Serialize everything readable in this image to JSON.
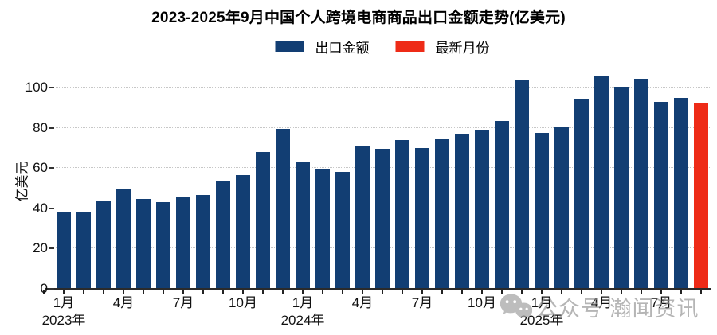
{
  "chart_data": {
    "type": "bar",
    "title": "2023-2025年9月中国个人跨境电商商品出口金额走势(亿美元)",
    "ylabel": "亿美元",
    "ylim": [
      0,
      107
    ],
    "yticks": [
      0,
      20,
      40,
      60,
      80,
      100
    ],
    "grid": "horizontal dotted",
    "legend_position": "top-center",
    "legend": [
      {
        "label": "出口金额",
        "color": "#123e73"
      },
      {
        "label": "最新月份",
        "color": "#ee2b17"
      }
    ],
    "highlight_last": true,
    "categories": [
      "2023-01",
      "2023-02",
      "2023-03",
      "2023-04",
      "2023-05",
      "2023-06",
      "2023-07",
      "2023-08",
      "2023-09",
      "2023-10",
      "2023-11",
      "2023-12",
      "2024-01",
      "2024-02",
      "2024-03",
      "2024-04",
      "2024-05",
      "2024-06",
      "2024-07",
      "2024-08",
      "2024-09",
      "2024-10",
      "2024-11",
      "2024-12",
      "2025-01",
      "2025-02",
      "2025-03",
      "2025-04",
      "2025-05",
      "2025-06",
      "2025-07",
      "2025-08",
      "2025-09"
    ],
    "values": [
      38,
      38.5,
      44,
      50,
      44.5,
      43,
      45.5,
      46.5,
      53.5,
      56.5,
      68,
      79.5,
      63,
      59.5,
      58,
      71,
      69.5,
      74,
      70,
      74.5,
      77,
      79,
      83.5,
      103.5,
      77.5,
      80.5,
      94.5,
      105.5,
      100.5,
      104.5,
      93,
      95,
      92
    ],
    "x_tick_labels": [
      {
        "index": 0,
        "label": "1月"
      },
      {
        "index": 3,
        "label": "4月"
      },
      {
        "index": 6,
        "label": "7月"
      },
      {
        "index": 9,
        "label": "10月"
      },
      {
        "index": 12,
        "label": "1月"
      },
      {
        "index": 15,
        "label": "4月"
      },
      {
        "index": 18,
        "label": "7月"
      },
      {
        "index": 21,
        "label": "10月"
      },
      {
        "index": 24,
        "label": "1月"
      },
      {
        "index": 27,
        "label": "4月"
      },
      {
        "index": 30,
        "label": "7月"
      }
    ],
    "year_labels": [
      {
        "index": 0,
        "label": "2023年"
      },
      {
        "index": 12,
        "label": "2024年"
      },
      {
        "index": 24,
        "label": "2025年"
      }
    ]
  },
  "watermark": {
    "icon": "wechat-icon",
    "text": "公众号 瀚闻资讯",
    "color": "#969696"
  }
}
